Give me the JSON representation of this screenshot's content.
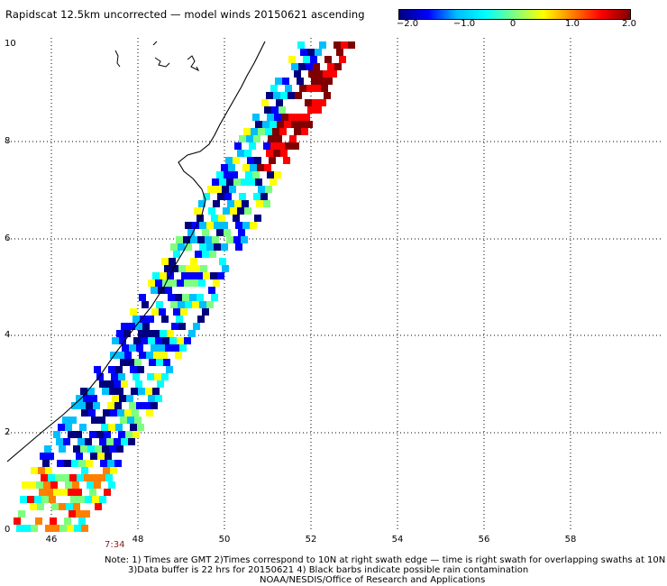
{
  "title": "Rapidscat 12.5km uncorrected — model winds 20150621 ascending",
  "colorbar": {
    "ticks": [
      "−2.0",
      "−1.0",
      "0",
      "1.0",
      "2.0"
    ],
    "colors": [
      "#00007f",
      "#0000ff",
      "#00bfff",
      "#00ffff",
      "#7fff7f",
      "#ffff00",
      "#ff8000",
      "#ff0000",
      "#7f0000"
    ]
  },
  "axes": {
    "x_ticks": [
      "46",
      "48",
      "50",
      "52",
      "54",
      "56",
      "58"
    ],
    "y_ticks": [
      "0",
      "2",
      "4",
      "6",
      "8",
      "10"
    ]
  },
  "orbit_time": "7:34",
  "notes": {
    "line1": "Note: 1) Times are GMT 2)Times correspond to 10N at right swath edge — time is right swath for overlapping swaths at 10N",
    "line2": "3)Data buffer is 22 hrs for 20150621 4) Black barbs indicate possible rain contamination",
    "line3": "NOAA/NESDIS/Office of Research and Applications"
  }
}
